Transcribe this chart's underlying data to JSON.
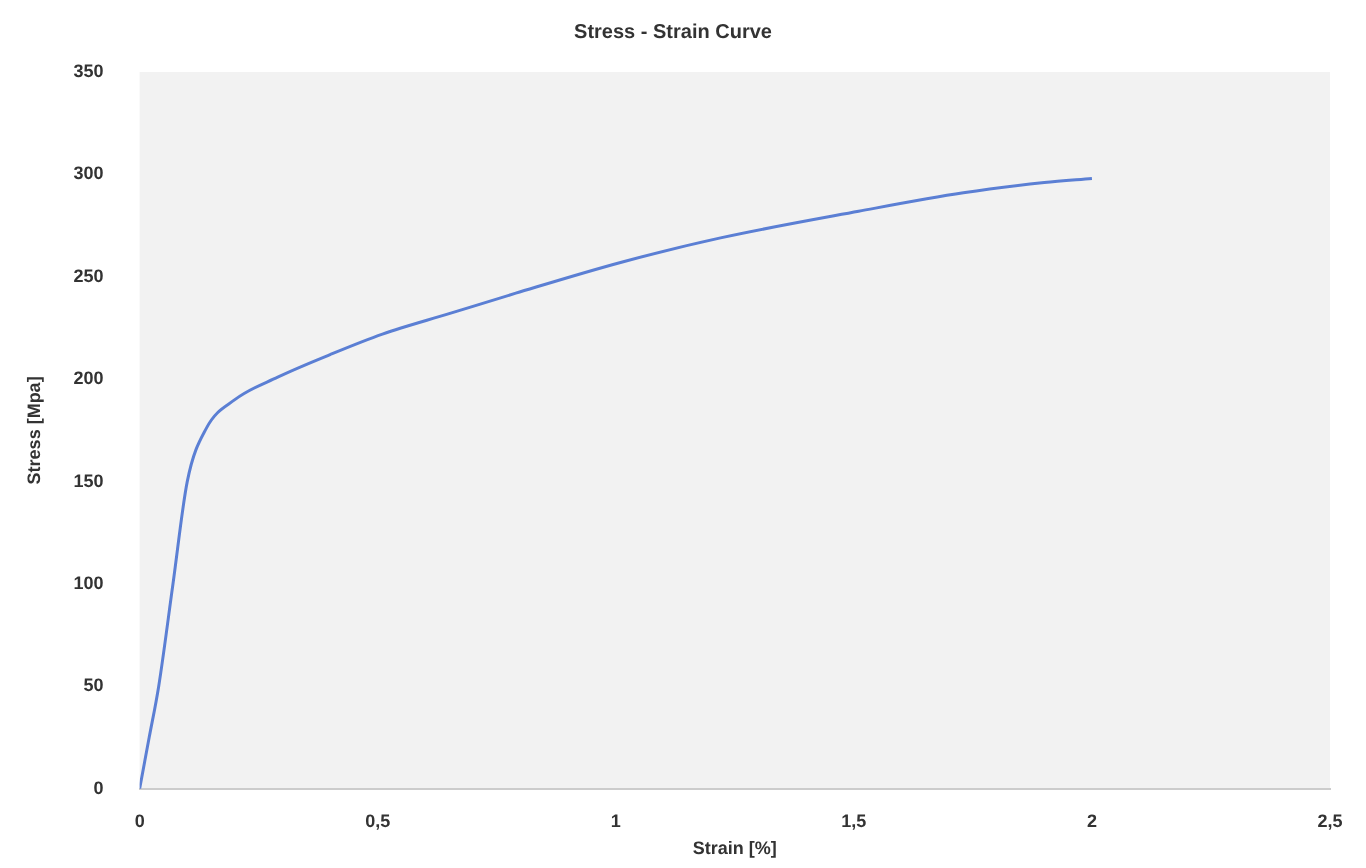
{
  "chart_data": {
    "type": "line",
    "title": "Stress - Strain Curve",
    "xlabel": "Strain [%]",
    "ylabel": "Stress [Mpa]",
    "x": [
      0,
      0.02,
      0.04,
      0.07,
      0.1,
      0.14,
      0.2,
      0.29,
      0.4,
      0.51,
      0.65,
      0.79,
      1.01,
      1.22,
      1.51,
      1.73,
      1.9,
      2.0
    ],
    "series": [
      {
        "color": "#5b7fd4",
        "values": [
          0,
          25,
          50,
          100,
          150,
          176,
          190,
          201,
          212,
          222,
          232,
          242,
          257,
          269,
          282,
          291,
          296,
          298
        ]
      }
    ],
    "xlim": [
      0,
      2.5
    ],
    "xticks": [
      0,
      {
        "value": 0.5,
        "label": "0,5"
      },
      1,
      {
        "value": 1.5,
        "label": "1,5"
      },
      2,
      {
        "value": 2.5,
        "label": "2,5"
      }
    ],
    "ylim": [
      0,
      350
    ],
    "yticks": [
      0,
      50,
      100,
      150,
      200,
      250,
      300,
      350
    ],
    "grid": false,
    "legend": false,
    "marker": "none"
  }
}
